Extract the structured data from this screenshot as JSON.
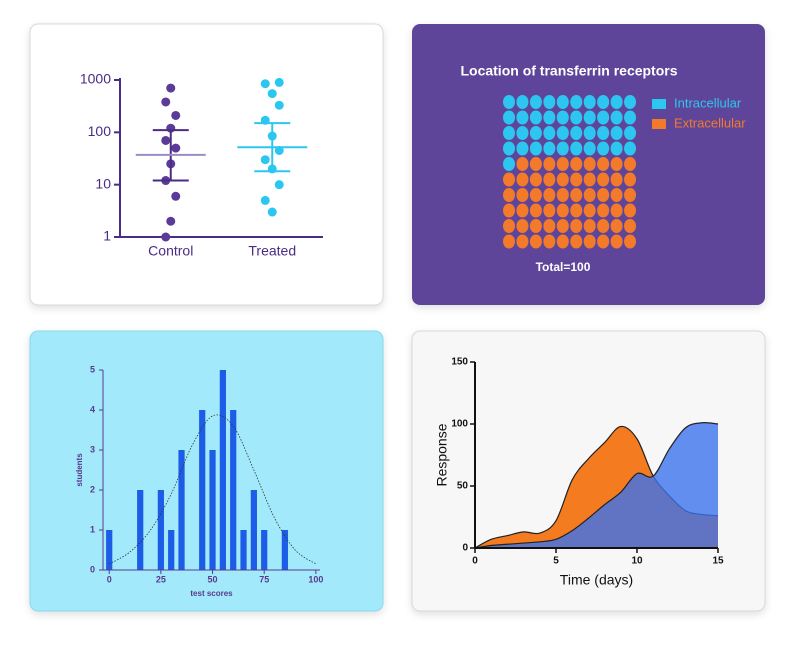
{
  "chart_data": [
    {
      "type": "dot_plot",
      "categories": [
        "Control",
        "Treated"
      ],
      "colors": [
        "#5b3a98",
        "#2cc7f0"
      ],
      "mean_colors": [
        "#9d8cc4",
        "#2cc7f0"
      ],
      "values": [
        [
          700,
          380,
          210,
          120,
          70,
          50,
          25,
          12,
          6,
          2,
          1
        ],
        [
          900,
          850,
          550,
          330,
          170,
          85,
          45,
          30,
          20,
          10,
          5,
          3
        ]
      ],
      "means": [
        37,
        52
      ],
      "error_low": [
        12,
        18
      ],
      "error_high": [
        110,
        150
      ],
      "ylim": [
        1,
        1000
      ],
      "yticks": [
        1,
        10,
        100,
        1000
      ],
      "log_scale": true,
      "axis_color": "#4a2c86"
    },
    {
      "type": "waffle",
      "title": "Location of transferrin receptors",
      "series": [
        {
          "name": "Intracellular",
          "color": "#2dc6f0",
          "value": 41
        },
        {
          "name": "Extracellular",
          "color": "#f37a2a",
          "value": 59
        }
      ],
      "annotation": "Total=100"
    },
    {
      "type": "histogram",
      "xlabel": "test scores",
      "ylabel": "students",
      "bins": [
        -2.5,
        2.5,
        7.5,
        12.5,
        17.5,
        22.5,
        27.5,
        32.5,
        37.5,
        42.5,
        47.5,
        52.5,
        57.5,
        62.5,
        67.5,
        72.5,
        77.5,
        82.5,
        87.5
      ],
      "values": [
        1,
        0,
        0,
        2,
        0,
        2,
        1,
        3,
        0,
        4,
        3,
        5,
        4,
        1,
        2,
        1,
        0,
        1
      ],
      "color": "#1c5ce6",
      "text_color": "#5a3a8c",
      "fit_curve": {
        "x": [
          0,
          10,
          20,
          30,
          40,
          50,
          60,
          70,
          80,
          90,
          100
        ],
        "values": [
          0.15,
          0.45,
          1.0,
          1.9,
          3.1,
          3.85,
          3.6,
          2.5,
          1.3,
          0.5,
          0.15
        ]
      },
      "xlim": [
        -3,
        102
      ],
      "xticks": [
        0,
        25,
        50,
        75,
        100
      ],
      "ylim": [
        0,
        5
      ],
      "yticks": [
        0,
        1,
        2,
        3,
        4,
        5
      ]
    },
    {
      "type": "area",
      "xlabel": "Time (days)",
      "ylabel": "Response",
      "x": [
        0,
        1,
        2,
        3,
        4,
        5,
        6,
        7,
        8,
        9,
        10,
        11,
        12,
        13,
        14,
        15
      ],
      "series": [
        {
          "color": "#f47b20",
          "values": [
            0,
            7,
            10,
            13,
            12,
            22,
            55,
            72,
            85,
            98,
            88,
            58,
            42,
            30,
            27,
            26
          ]
        },
        {
          "color": "#3b73ec",
          "values": [
            0,
            2,
            3,
            4,
            5,
            7,
            14,
            24,
            35,
            45,
            60,
            58,
            80,
            97,
            101,
            100
          ]
        }
      ],
      "xlim": [
        0,
        15
      ],
      "xticks": [
        0,
        5,
        10,
        15
      ],
      "ylim": [
        0,
        150
      ],
      "yticks": [
        0,
        50,
        100,
        150
      ]
    }
  ]
}
